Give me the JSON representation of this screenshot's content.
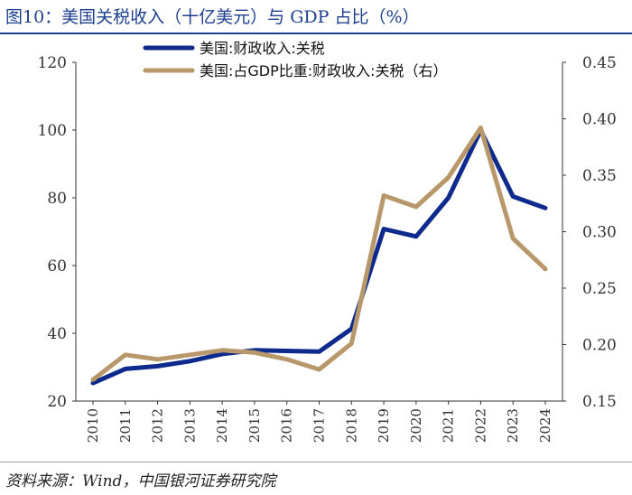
{
  "figure": {
    "title": "图10：美国关税收入（十亿美元）与 GDP 占比（%）",
    "source": "资料来源：Wind，中国银河证券研究院"
  },
  "colors": {
    "series1": "#0d2a8c",
    "series2": "#b8976b",
    "axis": "#333333"
  },
  "chart_data": {
    "type": "line",
    "x": [
      2010,
      2011,
      2012,
      2013,
      2014,
      2015,
      2016,
      2017,
      2018,
      2019,
      2020,
      2021,
      2022,
      2023,
      2024
    ],
    "x_tick_labels": [
      "2010",
      "2011",
      "2012",
      "2013",
      "2014",
      "2015",
      "2016",
      "2017",
      "2018",
      "2019",
      "2020",
      "2021",
      "2022",
      "2023",
      "2024"
    ],
    "left_axis": {
      "ylim": [
        20,
        120
      ],
      "ticks": [
        20,
        40,
        60,
        80,
        100,
        120
      ],
      "tick_labels": [
        "20",
        "40",
        "60",
        "80",
        "100",
        "120"
      ]
    },
    "right_axis": {
      "ylim": [
        0.15,
        0.45
      ],
      "ticks": [
        0.15,
        0.2,
        0.25,
        0.3,
        0.35,
        0.4,
        0.45
      ],
      "tick_labels": [
        "0.15",
        "0.20",
        "0.25",
        "0.30",
        "0.35",
        "0.40",
        "0.45"
      ]
    },
    "series": [
      {
        "name": "美国:财政收入:关税",
        "axis": "left",
        "values": [
          25.3,
          29.5,
          30.3,
          31.8,
          33.9,
          35.0,
          34.8,
          34.6,
          41.3,
          70.8,
          68.6,
          80.0,
          99.9,
          80.4,
          77.0
        ]
      },
      {
        "name": "美国:占GDP比重:财政收入:关税（右）",
        "axis": "right",
        "values": [
          0.169,
          0.191,
          0.187,
          0.191,
          0.195,
          0.193,
          0.187,
          0.178,
          0.201,
          0.332,
          0.322,
          0.348,
          0.392,
          0.294,
          0.267
        ]
      }
    ],
    "legend_position": "top-center",
    "grid": false
  }
}
